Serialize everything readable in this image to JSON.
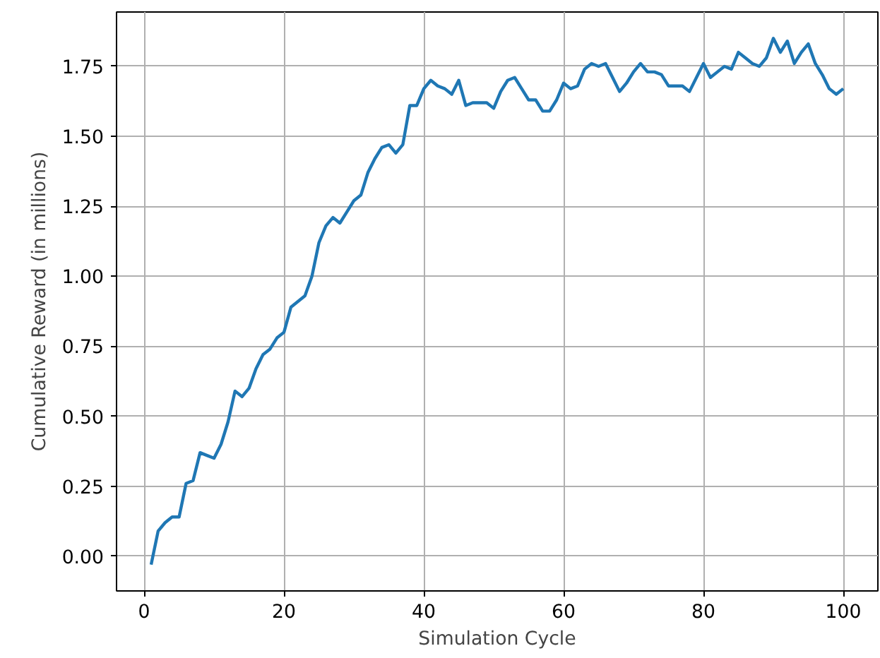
{
  "chart_data": {
    "type": "line",
    "xlabel": "Simulation Cycle",
    "ylabel": "Cumulative Reward (in millions)",
    "x": [
      1,
      2,
      3,
      4,
      5,
      6,
      7,
      8,
      9,
      10,
      11,
      12,
      13,
      14,
      15,
      16,
      17,
      18,
      19,
      20,
      21,
      22,
      23,
      24,
      25,
      26,
      27,
      28,
      29,
      30,
      31,
      32,
      33,
      34,
      35,
      36,
      37,
      38,
      39,
      40,
      41,
      42,
      43,
      44,
      45,
      46,
      47,
      48,
      49,
      50,
      51,
      52,
      53,
      54,
      55,
      56,
      57,
      58,
      59,
      60,
      61,
      62,
      63,
      64,
      65,
      66,
      67,
      68,
      69,
      70,
      71,
      72,
      73,
      74,
      75,
      76,
      77,
      78,
      79,
      80,
      81,
      82,
      83,
      84,
      85,
      86,
      87,
      88,
      89,
      90,
      91,
      92,
      93,
      94,
      95,
      96,
      97,
      98,
      99,
      100
    ],
    "series": [
      {
        "color": "#1f77b4",
        "values": [
          -0.03,
          0.09,
          0.12,
          0.14,
          0.14,
          0.26,
          0.27,
          0.37,
          0.36,
          0.35,
          0.4,
          0.48,
          0.59,
          0.57,
          0.6,
          0.67,
          0.72,
          0.74,
          0.78,
          0.8,
          0.89,
          0.91,
          0.93,
          1.0,
          1.12,
          1.18,
          1.21,
          1.19,
          1.23,
          1.27,
          1.29,
          1.37,
          1.42,
          1.46,
          1.47,
          1.44,
          1.47,
          1.61,
          1.61,
          1.67,
          1.7,
          1.68,
          1.67,
          1.65,
          1.7,
          1.61,
          1.62,
          1.62,
          1.62,
          1.6,
          1.66,
          1.7,
          1.71,
          1.67,
          1.63,
          1.63,
          1.59,
          1.59,
          1.63,
          1.69,
          1.67,
          1.68,
          1.74,
          1.76,
          1.75,
          1.76,
          1.71,
          1.66,
          1.69,
          1.73,
          1.76,
          1.73,
          1.73,
          1.72,
          1.68,
          1.68,
          1.68,
          1.66,
          1.71,
          1.76,
          1.71,
          1.73,
          1.75,
          1.74,
          1.8,
          1.78,
          1.76,
          1.75,
          1.78,
          1.85,
          1.8,
          1.84,
          1.76,
          1.8,
          1.83,
          1.76,
          1.72,
          1.67,
          1.65,
          1.67
        ]
      }
    ],
    "xlim": [
      -3.95,
      104.95
    ],
    "ylim": [
      -0.124,
      1.944
    ],
    "xticks": [
      0,
      20,
      40,
      60,
      80,
      100
    ],
    "yticks": [
      {
        "value": 0,
        "label": "0.00"
      },
      {
        "value": 0.25,
        "label": "0.25"
      },
      {
        "value": 0.5,
        "label": "0.50"
      },
      {
        "value": 0.75,
        "label": "0.75"
      },
      {
        "value": 1.0,
        "label": "1.00"
      },
      {
        "value": 1.25,
        "label": "1.25"
      },
      {
        "value": 1.5,
        "label": "1.50"
      },
      {
        "value": 1.75,
        "label": "1.75"
      }
    ],
    "grid": true,
    "marker": "none",
    "line_style": "solid"
  }
}
